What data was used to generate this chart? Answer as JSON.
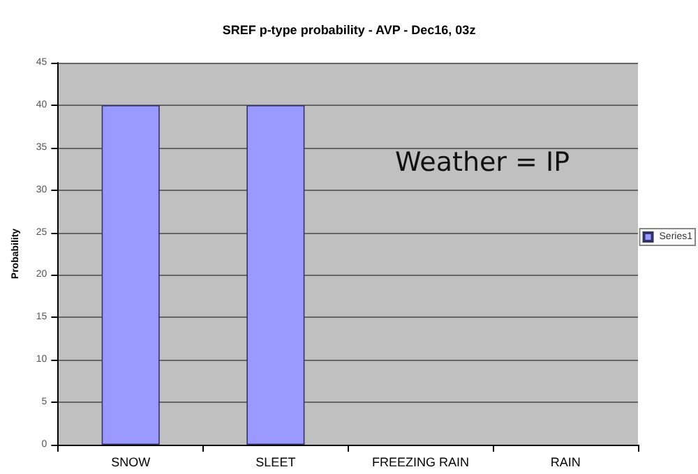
{
  "chart_data": {
    "type": "bar",
    "title": "SREF p-type probability - AVP - Dec16, 03z",
    "ylabel": "Probability",
    "categories": [
      "SNOW",
      "SLEET",
      "FREEZING RAIN",
      "RAIN"
    ],
    "series": [
      {
        "name": "Series1",
        "color": "#9999ff",
        "values": [
          40,
          40,
          0,
          0
        ]
      }
    ],
    "ylim": [
      0,
      45
    ],
    "yticks": [
      0,
      5,
      10,
      15,
      20,
      25,
      30,
      35,
      40,
      45
    ],
    "grid": "y",
    "legend": "right",
    "annotations": [
      "Weather = IP"
    ]
  }
}
